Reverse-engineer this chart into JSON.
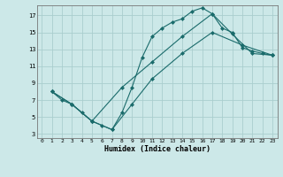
{
  "xlabel": "Humidex (Indice chaleur)",
  "background_color": "#cce8e8",
  "line_color": "#1a6b6b",
  "grid_color": "#aacece",
  "xlim": [
    -0.5,
    23.5
  ],
  "ylim": [
    2.5,
    18.2
  ],
  "xticks": [
    0,
    1,
    2,
    3,
    4,
    5,
    6,
    7,
    8,
    9,
    10,
    11,
    12,
    13,
    14,
    15,
    16,
    17,
    18,
    19,
    20,
    21,
    22,
    23
  ],
  "yticks": [
    3,
    5,
    7,
    9,
    11,
    13,
    15,
    17
  ],
  "curve1_x": [
    1,
    2,
    3,
    4,
    5,
    6,
    7,
    8,
    9,
    10,
    11,
    12,
    13,
    14,
    15,
    16,
    17,
    18,
    19,
    20,
    21,
    22,
    23
  ],
  "curve1_y": [
    8.0,
    7.0,
    6.5,
    5.5,
    4.5,
    4.0,
    3.5,
    5.5,
    8.5,
    12.0,
    14.5,
    15.5,
    16.2,
    16.6,
    17.5,
    17.9,
    17.2,
    15.5,
    15.0,
    13.2,
    12.8,
    12.5,
    12.3
  ],
  "curve2_x": [
    1,
    3,
    5,
    8,
    11,
    14,
    17,
    19,
    21,
    23
  ],
  "curve2_y": [
    8.0,
    6.5,
    4.5,
    8.5,
    11.5,
    14.5,
    17.2,
    14.8,
    12.5,
    12.3
  ],
  "curve3_x": [
    1,
    3,
    5,
    7,
    9,
    11,
    14,
    17,
    20,
    23
  ],
  "curve3_y": [
    8.0,
    6.5,
    4.5,
    3.5,
    6.5,
    9.5,
    12.5,
    15.0,
    13.5,
    12.3
  ]
}
